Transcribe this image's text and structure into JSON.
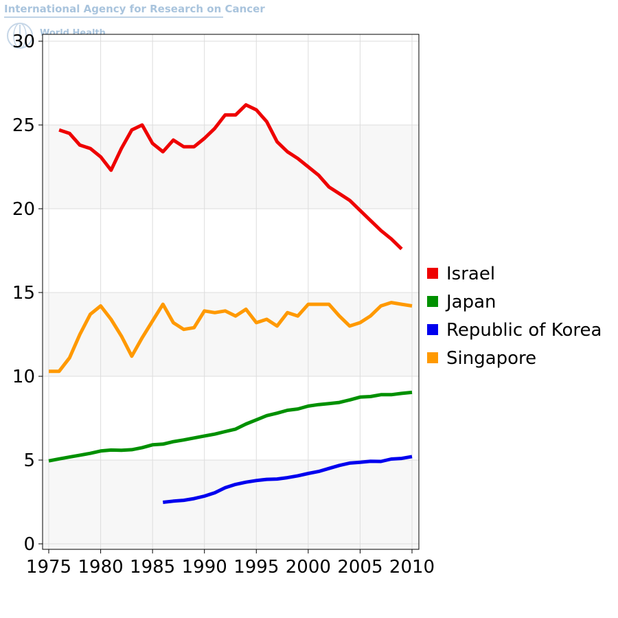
{
  "watermark": {
    "title": "International Agency for Research on Cancer",
    "subtitle": "World Health"
  },
  "chart_data": {
    "type": "line",
    "title": "",
    "xlabel": "",
    "ylabel": "",
    "xlim": [
      1975,
      2010
    ],
    "ylim": [
      0,
      30
    ],
    "xticks": [
      1975,
      1980,
      1985,
      1990,
      1995,
      2000,
      2005,
      2010
    ],
    "yticks": [
      0,
      5,
      10,
      15,
      20,
      25,
      30
    ],
    "grid": true,
    "banded_background": true,
    "legend_position": "right",
    "series": [
      {
        "name": "Israel",
        "color": "#ee0000",
        "x": [
          1976,
          1977,
          1978,
          1979,
          1980,
          1981,
          1982,
          1983,
          1984,
          1985,
          1986,
          1987,
          1988,
          1989,
          1990,
          1991,
          1992,
          1993,
          1994,
          1995,
          1996,
          1997,
          1998,
          1999,
          2000,
          2001,
          2002,
          2003,
          2004,
          2005,
          2006,
          2007,
          2008,
          2009
        ],
        "values": [
          24.7,
          24.5,
          23.8,
          23.6,
          23.1,
          22.3,
          23.6,
          24.7,
          25.0,
          23.9,
          23.4,
          24.1,
          23.7,
          23.7,
          24.2,
          24.8,
          25.6,
          25.6,
          26.2,
          25.9,
          25.2,
          24.0,
          23.4,
          23.0,
          22.5,
          22.0,
          21.3,
          20.9,
          20.5,
          19.9,
          19.3,
          18.7,
          18.2,
          17.6
        ]
      },
      {
        "name": "Japan",
        "color": "#009000",
        "x": [
          1975,
          1976,
          1977,
          1978,
          1979,
          1980,
          1981,
          1982,
          1983,
          1984,
          1985,
          1986,
          1987,
          1988,
          1989,
          1990,
          1991,
          1992,
          1993,
          1994,
          1995,
          1996,
          1997,
          1998,
          1999,
          2000,
          2001,
          2002,
          2003,
          2004,
          2005,
          2006,
          2007,
          2008,
          2009,
          2010
        ],
        "values": [
          4.95,
          5.07,
          5.18,
          5.29,
          5.4,
          5.54,
          5.6,
          5.58,
          5.62,
          5.74,
          5.91,
          5.95,
          6.1,
          6.2,
          6.32,
          6.44,
          6.55,
          6.7,
          6.85,
          7.15,
          7.4,
          7.65,
          7.8,
          7.97,
          8.05,
          8.22,
          8.31,
          8.37,
          8.44,
          8.59,
          8.76,
          8.79,
          8.9,
          8.9,
          8.98,
          9.04
        ]
      },
      {
        "name": "Republic of Korea",
        "color": "#0000ee",
        "x": [
          1986,
          1987,
          1988,
          1989,
          1990,
          1991,
          1992,
          1993,
          1994,
          1995,
          1996,
          1997,
          1998,
          1999,
          2000,
          2001,
          2002,
          2003,
          2004,
          2005,
          2006,
          2007,
          2008,
          2009,
          2010
        ],
        "values": [
          2.48,
          2.55,
          2.6,
          2.7,
          2.85,
          3.05,
          3.35,
          3.55,
          3.68,
          3.78,
          3.85,
          3.87,
          3.95,
          4.06,
          4.2,
          4.32,
          4.5,
          4.68,
          4.82,
          4.87,
          4.93,
          4.92,
          5.06,
          5.1,
          5.21
        ]
      },
      {
        "name": "Singapore",
        "color": "#ff9900",
        "x": [
          1975,
          1976,
          1977,
          1978,
          1979,
          1980,
          1981,
          1982,
          1983,
          1984,
          1985,
          1986,
          1987,
          1988,
          1989,
          1990,
          1991,
          1992,
          1993,
          1994,
          1995,
          1996,
          1997,
          1998,
          1999,
          2000,
          2001,
          2002,
          2003,
          2004,
          2005,
          2006,
          2007,
          2008,
          2009,
          2010
        ],
        "values": [
          10.3,
          10.3,
          11.1,
          12.5,
          13.7,
          14.2,
          13.4,
          12.4,
          11.2,
          12.3,
          13.3,
          14.3,
          13.2,
          12.8,
          12.9,
          13.9,
          13.8,
          13.9,
          13.6,
          14.0,
          13.2,
          13.4,
          13.0,
          13.8,
          13.6,
          14.3,
          14.3,
          14.3,
          13.6,
          13.0,
          13.2,
          13.6,
          14.2,
          14.4,
          14.3,
          14.2
        ]
      }
    ]
  }
}
